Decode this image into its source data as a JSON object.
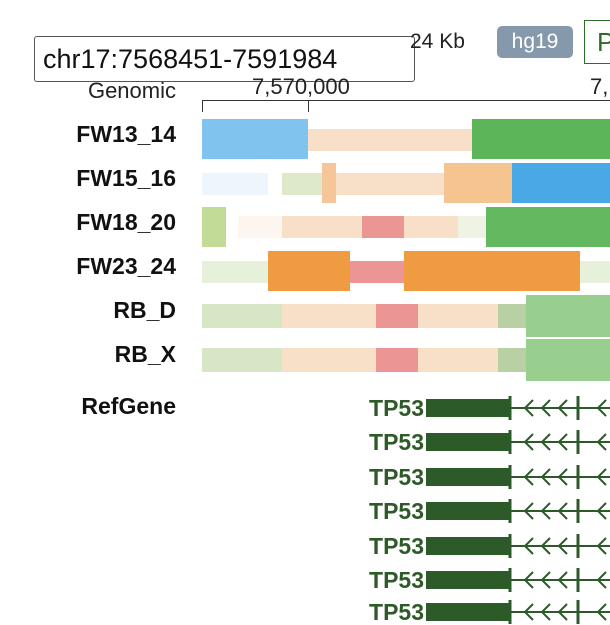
{
  "header": {
    "locus_value": "chr17:7568451-7591984",
    "size_label": "24 Kb",
    "genome_badge": "hg19",
    "next_box_char": "P"
  },
  "ruler": {
    "label": "Genomic",
    "ticks": [
      "7,570,000",
      "7,"
    ]
  },
  "colors": {
    "gene": "#2c5a28",
    "active_tss": "#5db55a",
    "flank": "#f4a742",
    "enhancer": "#f8d8b8",
    "repressed": "#e88a8a",
    "weak": "#d5e6c6"
  },
  "tracks": [
    {
      "label": "FW13_14"
    },
    {
      "label": "FW15_16"
    },
    {
      "label": "FW18_20"
    },
    {
      "label": "FW23_24"
    },
    {
      "label": "RB_D"
    },
    {
      "label": "RB_X"
    }
  ],
  "refgene": {
    "label": "RefGene",
    "transcripts": [
      {
        "name": "TP53"
      },
      {
        "name": "TP53"
      },
      {
        "name": "TP53"
      },
      {
        "name": "TP53"
      },
      {
        "name": "TP53"
      },
      {
        "name": "TP53"
      },
      {
        "name": "TP53"
      }
    ]
  }
}
